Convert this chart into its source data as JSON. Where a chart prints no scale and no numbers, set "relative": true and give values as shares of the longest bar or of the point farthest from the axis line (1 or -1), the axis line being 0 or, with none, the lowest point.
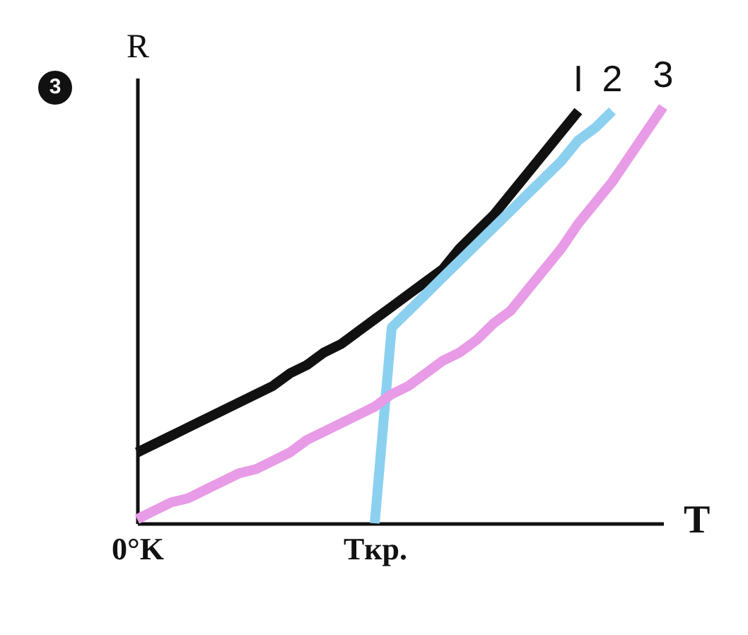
{
  "chart_data": {
    "type": "line",
    "relative": true,
    "xlabel": "T",
    "ylabel": "R",
    "annotations": [
      "3"
    ],
    "grid": false,
    "legend": false,
    "line_style": "solid",
    "categories": [
      "0°K",
      null,
      null,
      null,
      null,
      null,
      null,
      null,
      null,
      null,
      null,
      null,
      null,
      null,
      "Tкр.",
      null,
      null,
      null,
      null,
      null,
      null,
      null,
      null,
      null,
      null,
      null,
      null,
      null,
      null,
      null,
      null,
      null
    ],
    "series": [
      {
        "name": "I",
        "color": "#111111",
        "values": [
          0.17,
          0.19,
          0.21,
          0.23,
          0.25,
          0.27,
          0.29,
          0.31,
          0.33,
          0.36,
          0.38,
          0.41,
          0.43,
          0.46,
          0.49,
          0.52,
          0.55,
          0.58,
          0.61,
          0.66,
          0.7,
          0.74,
          0.79,
          0.84,
          0.89,
          0.94,
          0.99,
          null,
          null,
          null,
          null,
          null
        ]
      },
      {
        "name": "2",
        "color": "#8cd0f0",
        "values": [
          null,
          null,
          null,
          null,
          null,
          null,
          null,
          null,
          null,
          null,
          null,
          null,
          null,
          null,
          0,
          0.47,
          0.51,
          0.55,
          0.59,
          0.63,
          0.67,
          0.71,
          0.75,
          0.79,
          0.83,
          0.87,
          0.92,
          0.95,
          0.99,
          null,
          null,
          null
        ]
      },
      {
        "name": "3",
        "color": "#e89be6",
        "values": [
          0.01,
          0.03,
          0.05,
          0.06,
          0.08,
          0.1,
          0.12,
          0.13,
          0.15,
          0.17,
          0.2,
          0.22,
          0.24,
          0.26,
          0.28,
          0.31,
          0.33,
          0.36,
          0.39,
          0.41,
          0.44,
          0.48,
          0.51,
          0.56,
          0.61,
          0.66,
          0.72,
          0.77,
          0.82,
          0.88,
          0.94,
          1.0
        ]
      }
    ]
  }
}
